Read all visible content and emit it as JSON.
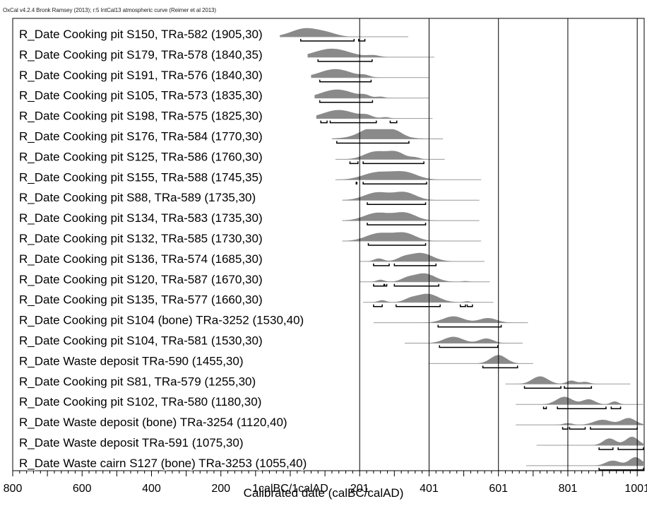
{
  "header_note": "OxCal v4.2.4 Bronk Ramsey (2013); r:5 IntCal13 atmospheric curve (Reimer et al 2013)",
  "chart_data": {
    "type": "calibration-multiplot",
    "xlabel": "Calibrated date (calBC/calAD)",
    "xlim": [
      -800,
      1020
    ],
    "x_ticks": [
      {
        "value": -800,
        "label": "800"
      },
      {
        "value": -600,
        "label": "600"
      },
      {
        "value": -400,
        "label": "400"
      },
      {
        "value": -200,
        "label": "200"
      },
      {
        "value": 0,
        "label": "1calBC/1calAD"
      },
      {
        "value": 200,
        "label": "201"
      },
      {
        "value": 400,
        "label": "401"
      },
      {
        "value": 600,
        "label": "601"
      },
      {
        "value": 800,
        "label": "801"
      },
      {
        "value": 1000,
        "label": "1001"
      }
    ],
    "grid_x": [
      200,
      400,
      600,
      800,
      1000
    ],
    "colors": {
      "distribution": "#8a8a8a",
      "range_line": "#9a9a9a",
      "bracket": "#000000",
      "grid": "#000000"
    },
    "rows": [
      {
        "label": "R_Date Cooking pit S150, TRa-582 (1905,30)",
        "range": [
          -30,
          340
        ],
        "peaks": [
          [
            45,
            90,
            1.0
          ],
          [
            110,
            60,
            0.3
          ]
        ],
        "brackets": [
          [
            30,
            184
          ],
          [
            197,
            215
          ]
        ]
      },
      {
        "label": "R_Date Cooking pit S179, TRa-578 (1840,35)",
        "range": [
          50,
          415
        ],
        "peaks": [
          [
            120,
            110,
            1.0
          ],
          [
            240,
            40,
            0.2
          ]
        ],
        "brackets": [
          [
            80,
            236
          ]
        ]
      },
      {
        "label": "R_Date Cooking pit S191, TRa-576 (1840,30)",
        "range": [
          60,
          400
        ],
        "peaks": [
          [
            130,
            100,
            1.0
          ],
          [
            215,
            30,
            0.2
          ]
        ],
        "brackets": [
          [
            85,
            233
          ]
        ]
      },
      {
        "label": "R_Date Cooking pit S105, TRa-573 (1835,30)",
        "range": [
          70,
          400
        ],
        "peaks": [
          [
            135,
            100,
            1.0
          ],
          [
            215,
            30,
            0.25
          ],
          [
            260,
            25,
            0.15
          ]
        ],
        "brackets": [
          [
            85,
            237
          ]
        ]
      },
      {
        "label": "R_Date Cooking pit S198, TRa-575 (1825,30)",
        "range": [
          75,
          410
        ],
        "peaks": [
          [
            140,
            100,
            1.0
          ],
          [
            220,
            35,
            0.3
          ],
          [
            275,
            25,
            0.15
          ]
        ],
        "brackets": [
          [
            88,
            106
          ],
          [
            115,
            248
          ],
          [
            288,
            307
          ]
        ]
      },
      {
        "label": "R_Date Cooking pit S176, TRa-584 (1770,30)",
        "range": [
          120,
          440
        ],
        "peaks": [
          [
            235,
            70,
            0.9
          ],
          [
            300,
            50,
            0.7
          ],
          [
            250,
            140,
            0.4
          ]
        ],
        "brackets": [
          [
            134,
            342
          ]
        ]
      },
      {
        "label": "R_Date Cooking pit S125, TRa-586 (1760,30)",
        "range": [
          130,
          445
        ],
        "peaks": [
          [
            245,
            70,
            0.9
          ],
          [
            305,
            55,
            0.8
          ],
          [
            360,
            30,
            0.2
          ]
        ],
        "brackets": [
          [
            172,
            195
          ],
          [
            210,
            385
          ]
        ]
      },
      {
        "label": "R_Date Cooking pit S155, TRa-588 (1745,35)",
        "range": [
          130,
          550
        ],
        "peaks": [
          [
            250,
            90,
            0.85
          ],
          [
            330,
            80,
            0.85
          ]
        ],
        "brackets": [
          [
            190,
            192
          ],
          [
            210,
            393
          ]
        ]
      },
      {
        "label": "R_Date Cooking pit S88, TRa-589 (1735,30)",
        "range": [
          150,
          545
        ],
        "peaks": [
          [
            250,
            80,
            0.9
          ],
          [
            330,
            70,
            0.9
          ]
        ],
        "brackets": [
          [
            222,
            390
          ]
        ]
      },
      {
        "label": "R_Date Cooking pit S134, TRa-583 (1735,30)",
        "range": [
          150,
          545
        ],
        "peaks": [
          [
            250,
            80,
            0.9
          ],
          [
            330,
            70,
            0.9
          ]
        ],
        "brackets": [
          [
            222,
            390
          ]
        ]
      },
      {
        "label": "R_Date Cooking pit S132, TRa-585 (1730,30)",
        "range": [
          150,
          550
        ],
        "peaks": [
          [
            255,
            80,
            0.9
          ],
          [
            330,
            70,
            0.9
          ]
        ],
        "brackets": [
          [
            225,
            390
          ]
        ]
      },
      {
        "label": "R_Date Cooking pit S136, TRa-574 (1685,30)",
        "range": [
          200,
          560
        ],
        "peaks": [
          [
            255,
            30,
            0.35
          ],
          [
            375,
            75,
            1.0
          ],
          [
            325,
            40,
            0.3
          ]
        ],
        "brackets": [
          [
            240,
            285
          ],
          [
            300,
            420
          ]
        ]
      },
      {
        "label": "R_Date Cooking pit S120, TRa-587 (1670,30)",
        "range": [
          200,
          575
        ],
        "peaks": [
          [
            260,
            25,
            0.25
          ],
          [
            385,
            70,
            1.0
          ],
          [
            335,
            40,
            0.3
          ],
          [
            505,
            20,
            0.1
          ]
        ],
        "brackets": [
          [
            240,
            270
          ],
          [
            272,
            278
          ],
          [
            300,
            428
          ]
        ]
      },
      {
        "label": "R_Date Cooking pit S135, TRa-577 (1660,30)",
        "range": [
          210,
          585
        ],
        "peaks": [
          [
            265,
            25,
            0.25
          ],
          [
            395,
            70,
            1.0
          ],
          [
            345,
            40,
            0.3
          ],
          [
            510,
            20,
            0.12
          ]
        ],
        "brackets": [
          [
            240,
            265
          ],
          [
            305,
            432
          ],
          [
            490,
            505
          ],
          [
            510,
            525
          ]
        ]
      },
      {
        "label": "R_Date Cooking pit S104 (bone) TRa-3252 (1530,40)",
        "range": [
          240,
          685
        ],
        "peaks": [
          [
            470,
            65,
            0.75
          ],
          [
            570,
            55,
            0.55
          ]
        ],
        "brackets": [
          [
            426,
            608
          ]
        ]
      },
      {
        "label": "R_Date Cooking pit S104, TRa-581 (1530,30)",
        "range": [
          330,
          670
        ],
        "peaks": [
          [
            470,
            60,
            0.75
          ],
          [
            565,
            45,
            0.55
          ]
        ],
        "brackets": [
          [
            430,
            598
          ]
        ]
      },
      {
        "label": "R_Date Waste deposit TRa-590 (1455,30)",
        "range": [
          400,
          700
        ],
        "peaks": [
          [
            600,
            50,
            1.0
          ]
        ],
        "brackets": [
          [
            555,
            655
          ]
        ]
      },
      {
        "label": "R_Date Cooking pit S81, TRa-579 (1255,30)",
        "range": [
          620,
          980
        ],
        "peaks": [
          [
            720,
            50,
            0.9
          ],
          [
            810,
            30,
            0.4
          ],
          [
            850,
            30,
            0.25
          ]
        ],
        "brackets": [
          [
            675,
            780
          ],
          [
            790,
            868
          ]
        ]
      },
      {
        "label": "R_Date Cooking pit S102, TRa-580 (1180,30)",
        "range": [
          650,
          1020
        ],
        "peaks": [
          [
            790,
            50,
            0.9
          ],
          [
            860,
            40,
            0.6
          ],
          [
            935,
            25,
            0.35
          ]
        ],
        "brackets": [
          [
            730,
            738
          ],
          [
            770,
            910
          ],
          [
            925,
            952
          ]
        ]
      },
      {
        "label": "R_Date Waste deposit (bone) TRa-3254 (1120,40)",
        "range": [
          650,
          1020
        ],
        "peaks": [
          [
            900,
            55,
            0.6
          ],
          [
            975,
            45,
            0.8
          ],
          [
            800,
            30,
            0.2
          ]
        ],
        "brackets": [
          [
            785,
            800
          ],
          [
            805,
            850
          ],
          [
            865,
            1000
          ]
        ]
      },
      {
        "label": "R_Date Waste deposit TRa-591 (1075,30)",
        "range": [
          710,
          1020
        ],
        "peaks": [
          [
            920,
            40,
            0.8
          ],
          [
            985,
            40,
            1.0
          ]
        ],
        "brackets": [
          [
            890,
            930
          ],
          [
            945,
            1018
          ]
        ]
      },
      {
        "label": "R_Date Waste cairn S127 (bone) TRa-3253 (1055,40)",
        "range": [
          680,
          1020
        ],
        "peaks": [
          [
            930,
            45,
            0.6
          ],
          [
            995,
            40,
            1.0
          ]
        ],
        "brackets": [
          [
            890,
            1018
          ]
        ]
      }
    ]
  }
}
